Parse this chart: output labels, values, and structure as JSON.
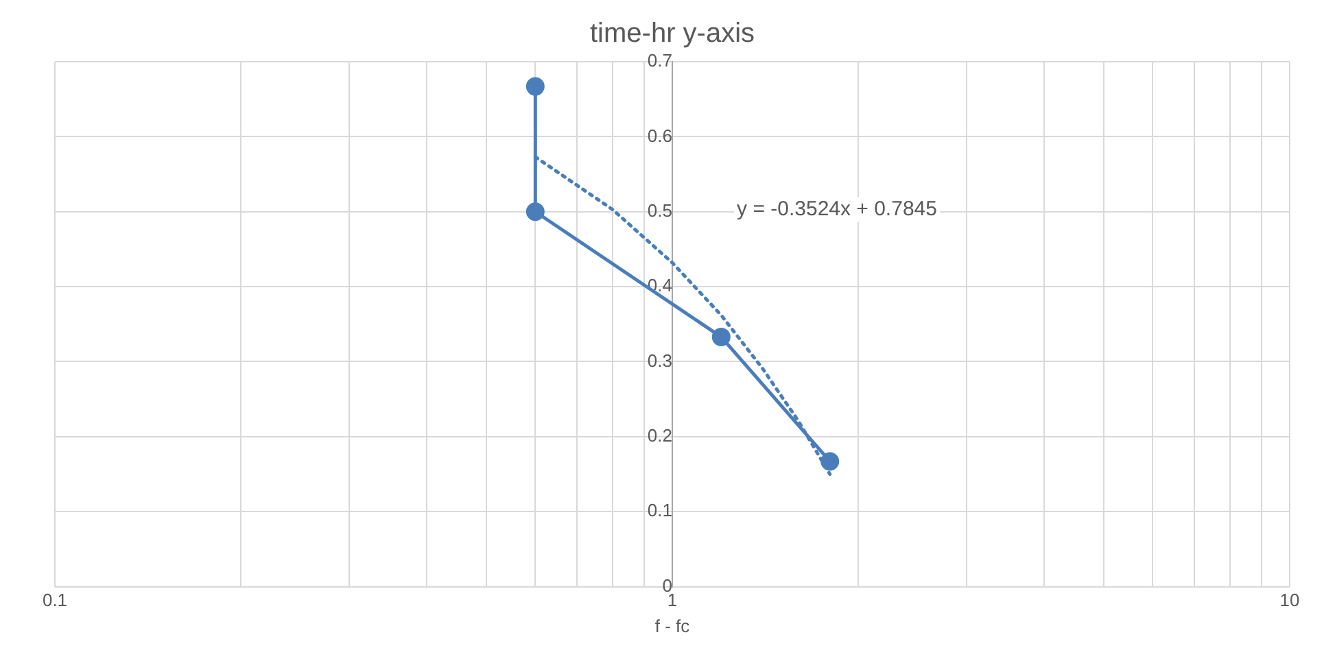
{
  "chart_data": {
    "type": "line",
    "title": "time-hr y-axis",
    "xlabel": "f - fc",
    "log": "x",
    "xlim": [
      0.1,
      10
    ],
    "xticks": [
      0.1,
      {
        "value": 0.2,
        "label": null
      },
      {
        "value": 0.3,
        "label": null
      },
      {
        "value": 0.4,
        "label": null
      },
      {
        "value": 0.5,
        "label": null
      },
      {
        "value": 0.6,
        "label": null
      },
      {
        "value": 0.7,
        "label": null
      },
      {
        "value": 0.8,
        "label": null
      },
      {
        "value": 0.9,
        "label": null
      },
      1,
      {
        "value": 2,
        "label": null
      },
      {
        "value": 3,
        "label": null
      },
      {
        "value": 4,
        "label": null
      },
      {
        "value": 5,
        "label": null
      },
      {
        "value": 6,
        "label": null
      },
      {
        "value": 7,
        "label": null
      },
      {
        "value": 8,
        "label": null
      },
      {
        "value": 9,
        "label": null
      },
      10
    ],
    "ylim": [
      0,
      0.7
    ],
    "yticks": [
      0,
      0.1,
      0.2,
      0.3,
      0.4,
      0.5,
      0.6,
      0.7
    ],
    "grid": true,
    "legend": false,
    "series": [
      {
        "color": "#4a7ebb",
        "x": [
          0.6,
          0.6,
          1.2,
          1.8
        ],
        "values": [
          0.667,
          0.5,
          0.333,
          0.167
        ],
        "marker": "circle",
        "line_style": "solid"
      },
      {
        "color": "#4a7ebb",
        "x": [
          0.6,
          0.8,
          1.0,
          1.2,
          1.4,
          1.6,
          1.8
        ],
        "values": [
          0.573,
          0.503,
          0.432,
          0.362,
          0.291,
          0.221,
          0.15
        ],
        "marker": "none",
        "line_style": "dotted"
      }
    ],
    "annotations": [
      "y = -0.3524x + 0.7845"
    ]
  }
}
